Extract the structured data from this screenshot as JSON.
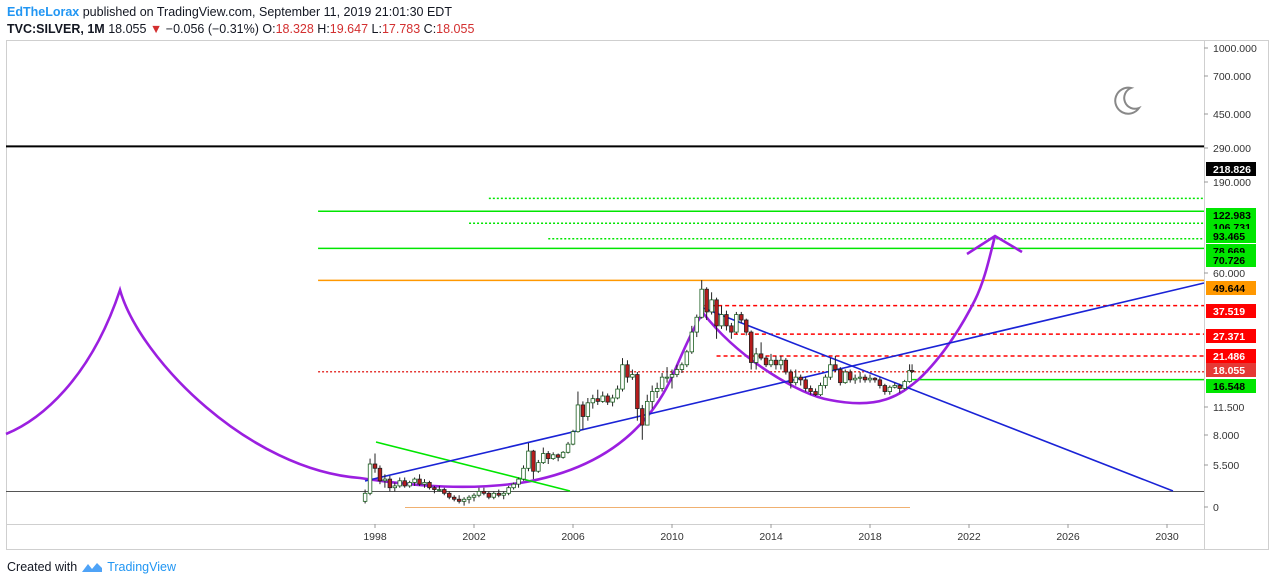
{
  "header": {
    "author": "EdTheLorax",
    "published": "published on TradingView.com, September 11, 2019 21:01:30 EDT",
    "symbol": "TVC:SILVER, 1M",
    "last": "18.055",
    "change": "−0.056 (−0.31%)",
    "o_label": "O:",
    "o_value": "18.328",
    "h_label": "H:",
    "h_value": "19.647",
    "l_label": "L:",
    "l_value": "17.783",
    "c_label": "C:",
    "c_value": "18.055"
  },
  "footer": {
    "created": "Created with",
    "brand": "TradingView"
  },
  "colors": {
    "up": "#1b5e20",
    "down": "#b71c1c",
    "purple": "#9b1fe0",
    "blue": "#1a23d6",
    "green": "#00e600",
    "orange": "#ff9800",
    "red": "#ff0000",
    "black": "#000000"
  },
  "chart_data": {
    "type": "candlestick",
    "y_scale": "log",
    "y_ticks": [
      "1000.000",
      "700.000",
      "450.000",
      "290.000",
      "190.000",
      "60.000",
      "11.500",
      "8.000",
      "5.500",
      "0"
    ],
    "x_ticks": [
      "1998",
      "2002",
      "2006",
      "2010",
      "2014",
      "2018",
      "2022",
      "2026",
      "2030"
    ],
    "price_labels": [
      {
        "text": "218.826",
        "bg": "#000000",
        "fg": "#ffffff"
      },
      {
        "text": "122.983",
        "bg": "#00e600",
        "fg": "#000000"
      },
      {
        "text": "106.731",
        "bg": "#00e600",
        "fg": "#000000"
      },
      {
        "text": "93.465",
        "bg": "#00e600",
        "fg": "#000000"
      },
      {
        "text": "78.669",
        "bg": "#00e600",
        "fg": "#000000"
      },
      {
        "text": "70.726",
        "bg": "#00e600",
        "fg": "#000000"
      },
      {
        "text": "49.644",
        "bg": "#ff9800",
        "fg": "#000000"
      },
      {
        "text": "37.519",
        "bg": "#ff0000",
        "fg": "#ffffff"
      },
      {
        "text": "27.371",
        "bg": "#ff0000",
        "fg": "#ffffff"
      },
      {
        "text": "21.486",
        "bg": "#ff0000",
        "fg": "#ffffff"
      },
      {
        "text": "18.055",
        "bg": "#e53935",
        "fg": "#ffffff"
      },
      {
        "text": "16.548",
        "bg": "#00e600",
        "fg": "#000000"
      }
    ],
    "candles": [
      [
        1997.6,
        4.3,
        4.9,
        4.2,
        4.7
      ],
      [
        1997.8,
        4.7,
        6.9,
        4.6,
        6.5
      ],
      [
        1998.0,
        6.5,
        7.3,
        5.9,
        6.2
      ],
      [
        1998.2,
        6.2,
        6.4,
        5.2,
        5.4
      ],
      [
        1998.4,
        5.4,
        5.8,
        5.0,
        5.5
      ],
      [
        1998.6,
        5.5,
        5.7,
        4.8,
        5.0
      ],
      [
        1998.8,
        5.0,
        5.3,
        4.8,
        5.1
      ],
      [
        1999.0,
        5.1,
        5.6,
        5.0,
        5.4
      ],
      [
        1999.2,
        5.4,
        5.6,
        5.0,
        5.1
      ],
      [
        1999.4,
        5.1,
        5.4,
        5.0,
        5.3
      ],
      [
        1999.6,
        5.3,
        5.6,
        5.1,
        5.5
      ],
      [
        1999.8,
        5.5,
        5.8,
        5.1,
        5.2
      ],
      [
        2000.0,
        5.2,
        5.5,
        5.0,
        5.3
      ],
      [
        2000.2,
        5.3,
        5.4,
        4.9,
        5.0
      ],
      [
        2000.4,
        5.0,
        5.1,
        4.7,
        4.9
      ],
      [
        2000.6,
        4.9,
        5.1,
        4.8,
        4.9
      ],
      [
        2000.8,
        4.9,
        5.0,
        4.6,
        4.7
      ],
      [
        2001.0,
        4.7,
        4.8,
        4.4,
        4.5
      ],
      [
        2001.2,
        4.5,
        4.6,
        4.3,
        4.4
      ],
      [
        2001.4,
        4.4,
        4.6,
        4.2,
        4.3
      ],
      [
        2001.6,
        4.3,
        4.5,
        4.1,
        4.4
      ],
      [
        2001.8,
        4.4,
        4.6,
        4.2,
        4.5
      ],
      [
        2002.0,
        4.5,
        4.7,
        4.3,
        4.6
      ],
      [
        2002.2,
        4.6,
        5.0,
        4.5,
        4.8
      ],
      [
        2002.4,
        4.8,
        5.0,
        4.6,
        4.7
      ],
      [
        2002.6,
        4.7,
        4.8,
        4.4,
        4.5
      ],
      [
        2002.8,
        4.5,
        4.8,
        4.4,
        4.7
      ],
      [
        2003.0,
        4.7,
        4.9,
        4.5,
        4.6
      ],
      [
        2003.2,
        4.6,
        4.8,
        4.4,
        4.7
      ],
      [
        2003.4,
        4.7,
        5.1,
        4.6,
        5.0
      ],
      [
        2003.6,
        5.0,
        5.3,
        4.9,
        5.2
      ],
      [
        2003.8,
        5.2,
        5.6,
        5.0,
        5.5
      ],
      [
        2004.0,
        5.5,
        6.4,
        5.4,
        6.2
      ],
      [
        2004.2,
        6.2,
        8.2,
        6.0,
        7.5
      ],
      [
        2004.4,
        7.5,
        7.6,
        5.5,
        6.0
      ],
      [
        2004.6,
        6.0,
        6.8,
        5.9,
        6.6
      ],
      [
        2004.8,
        6.6,
        7.8,
        6.5,
        7.3
      ],
      [
        2005.0,
        7.3,
        7.5,
        6.5,
        6.9
      ],
      [
        2005.2,
        6.9,
        7.4,
        6.8,
        7.2
      ],
      [
        2005.4,
        7.2,
        7.3,
        6.7,
        7.0
      ],
      [
        2005.6,
        7.0,
        7.5,
        6.9,
        7.4
      ],
      [
        2005.8,
        7.4,
        8.3,
        7.3,
        8.1
      ],
      [
        2006.0,
        8.1,
        9.5,
        8.0,
        9.3
      ],
      [
        2006.2,
        9.3,
        14.5,
        9.2,
        12.5
      ],
      [
        2006.4,
        12.5,
        13.0,
        9.5,
        11.0
      ],
      [
        2006.6,
        11.0,
        13.5,
        10.5,
        12.8
      ],
      [
        2006.8,
        12.8,
        14.0,
        12.0,
        13.4
      ],
      [
        2007.0,
        13.4,
        14.8,
        12.5,
        13.0
      ],
      [
        2007.2,
        13.0,
        14.5,
        12.8,
        13.8
      ],
      [
        2007.4,
        13.8,
        14.2,
        12.5,
        12.9
      ],
      [
        2007.6,
        12.9,
        14.0,
        12.3,
        13.5
      ],
      [
        2007.8,
        13.5,
        15.5,
        13.3,
        14.9
      ],
      [
        2008.0,
        14.9,
        21.0,
        14.5,
        19.5
      ],
      [
        2008.2,
        19.5,
        20.5,
        16.0,
        17.0
      ],
      [
        2008.4,
        17.0,
        18.5,
        16.5,
        17.5
      ],
      [
        2008.6,
        17.5,
        18.0,
        10.5,
        12.0
      ],
      [
        2008.8,
        12.0,
        12.5,
        8.5,
        10.0
      ],
      [
        2009.0,
        10.0,
        14.0,
        10.0,
        13.0
      ],
      [
        2009.2,
        13.0,
        15.5,
        12.0,
        14.5
      ],
      [
        2009.4,
        14.5,
        16.0,
        13.5,
        15.0
      ],
      [
        2009.6,
        15.0,
        17.8,
        14.5,
        17.0
      ],
      [
        2009.8,
        17.0,
        19.0,
        16.0,
        17.0
      ],
      [
        2010.0,
        17.0,
        18.5,
        15.0,
        17.5
      ],
      [
        2010.2,
        17.5,
        19.5,
        17.0,
        18.5
      ],
      [
        2010.4,
        18.5,
        20.0,
        17.8,
        19.5
      ],
      [
        2010.6,
        19.5,
        23.0,
        19.0,
        22.5
      ],
      [
        2010.8,
        22.5,
        30.0,
        22.0,
        28.0
      ],
      [
        2011.0,
        28.0,
        34.0,
        26.5,
        33.0
      ],
      [
        2011.2,
        33.0,
        49.8,
        32.5,
        45.0
      ],
      [
        2011.4,
        45.0,
        46.0,
        32.0,
        35.0
      ],
      [
        2011.6,
        35.0,
        43.5,
        34.0,
        40.0
      ],
      [
        2011.8,
        40.0,
        41.0,
        26.0,
        30.0
      ],
      [
        2012.0,
        30.0,
        37.5,
        29.0,
        34.0
      ],
      [
        2012.2,
        34.0,
        35.5,
        28.5,
        30.0
      ],
      [
        2012.4,
        30.0,
        31.0,
        26.0,
        28.0
      ],
      [
        2012.6,
        28.0,
        35.0,
        27.5,
        34.0
      ],
      [
        2012.8,
        34.0,
        35.0,
        31.0,
        32.0
      ],
      [
        2013.0,
        32.0,
        32.5,
        27.0,
        28.0
      ],
      [
        2013.2,
        28.0,
        28.5,
        18.5,
        20.0
      ],
      [
        2013.4,
        20.0,
        23.5,
        18.5,
        22.0
      ],
      [
        2013.6,
        22.0,
        25.0,
        20.5,
        21.0
      ],
      [
        2013.8,
        21.0,
        21.5,
        19.0,
        19.5
      ],
      [
        2014.0,
        19.5,
        22.0,
        19.0,
        20.5
      ],
      [
        2014.2,
        20.5,
        21.5,
        18.5,
        19.5
      ],
      [
        2014.4,
        19.5,
        21.5,
        18.5,
        20.5
      ],
      [
        2014.6,
        20.5,
        21.0,
        17.5,
        18.0
      ],
      [
        2014.8,
        18.0,
        18.5,
        15.0,
        16.0
      ],
      [
        2015.0,
        16.0,
        18.5,
        15.5,
        17.0
      ],
      [
        2015.2,
        17.0,
        17.5,
        15.5,
        16.5
      ],
      [
        2015.4,
        16.5,
        17.0,
        14.5,
        15.0
      ],
      [
        2015.6,
        15.0,
        15.5,
        14.0,
        14.5
      ],
      [
        2015.8,
        14.5,
        15.0,
        13.8,
        14.0
      ],
      [
        2016.0,
        14.0,
        16.0,
        13.8,
        15.5
      ],
      [
        2016.2,
        15.5,
        17.5,
        15.0,
        17.0
      ],
      [
        2016.4,
        17.0,
        21.0,
        16.5,
        19.5
      ],
      [
        2016.6,
        19.5,
        21.5,
        18.0,
        18.5
      ],
      [
        2016.8,
        18.5,
        19.0,
        15.5,
        16.0
      ],
      [
        2017.0,
        16.0,
        18.5,
        15.8,
        18.0
      ],
      [
        2017.2,
        18.0,
        18.5,
        16.0,
        16.5
      ],
      [
        2017.4,
        16.5,
        17.5,
        15.8,
        16.8
      ],
      [
        2017.6,
        16.8,
        18.0,
        16.0,
        17.0
      ],
      [
        2017.8,
        17.0,
        17.5,
        16.0,
        16.5
      ],
      [
        2018.0,
        16.5,
        17.5,
        16.0,
        16.8
      ],
      [
        2018.2,
        16.8,
        17.0,
        16.0,
        16.5
      ],
      [
        2018.4,
        16.5,
        17.0,
        15.0,
        15.5
      ],
      [
        2018.6,
        15.5,
        15.8,
        14.0,
        14.5
      ],
      [
        2018.8,
        14.5,
        15.5,
        14.0,
        15.2
      ],
      [
        2019.0,
        15.2,
        16.0,
        15.0,
        15.5
      ],
      [
        2019.2,
        15.5,
        15.8,
        14.3,
        15.0
      ],
      [
        2019.4,
        15.0,
        16.5,
        14.8,
        16.2
      ],
      [
        2019.6,
        16.2,
        19.6,
        16.0,
        18.3
      ],
      [
        2019.7,
        18.3,
        19.6,
        17.8,
        18.05
      ]
    ],
    "horizontal_lines": [
      {
        "price": 218.826,
        "color": "#000000",
        "style": "solid"
      },
      {
        "price": 122.983,
        "color": "#00e600",
        "style": "dotted",
        "from": 2002.6
      },
      {
        "price": 106.731,
        "color": "#00e600",
        "style": "solid",
        "from": 1995.7
      },
      {
        "price": 93.465,
        "color": "#00e600",
        "style": "dotted",
        "from": 2001.8
      },
      {
        "price": 78.669,
        "color": "#00e600",
        "style": "dotted",
        "from": 2005.0
      },
      {
        "price": 70.726,
        "color": "#00e600",
        "style": "solid",
        "from": 1995.7
      },
      {
        "price": 49.644,
        "color": "#ff9800",
        "style": "solid",
        "from": 1995.7
      },
      {
        "price": 37.519,
        "color": "#ff0000",
        "style": "dashed",
        "from": 2011.3
      },
      {
        "price": 27.371,
        "color": "#ff0000",
        "style": "dashed",
        "from": 2012.5
      },
      {
        "price": 21.486,
        "color": "#ff0000",
        "style": "dashed",
        "from": 2011.8
      },
      {
        "price": 18.055,
        "color": "#e53935",
        "style": "dotted",
        "from": 1995.7
      },
      {
        "price": 16.548,
        "color": "#00e600",
        "style": "solid",
        "from": 2019.7
      }
    ]
  }
}
